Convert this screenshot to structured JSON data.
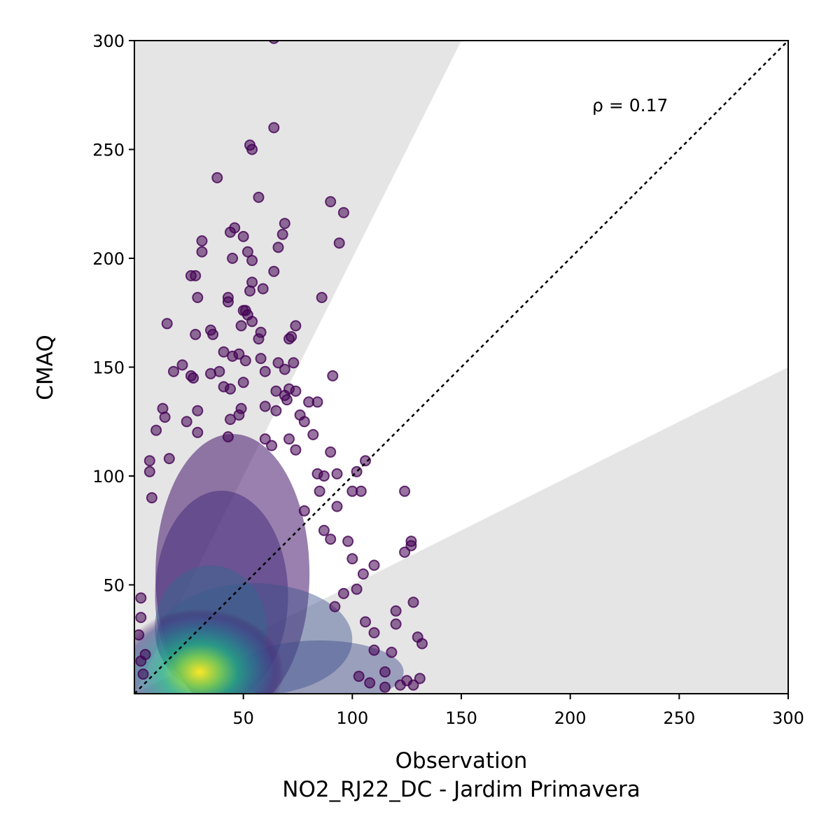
{
  "chart_data": {
    "type": "scatter",
    "title": "",
    "xlabel": "Observation",
    "ylabel": "CMAQ",
    "subtitle": "NO2_RJ22_DC - Jardim Primavera",
    "xlim": [
      0,
      300
    ],
    "ylim": [
      0,
      300
    ],
    "xticks": [
      50,
      100,
      150,
      200,
      250,
      300
    ],
    "yticks": [
      50,
      100,
      150,
      200,
      250,
      300
    ],
    "annotation": "ρ = 0.17",
    "identity_line": {
      "from": [
        0,
        0
      ],
      "to": [
        300,
        300
      ],
      "style": "dotted",
      "color": "#000000"
    },
    "shaded_regions": [
      {
        "name": "",
        "bounds": "y > 2x",
        "color": "#e5e5e5"
      },
      {
        "name": "",
        "bounds": "y < 0.5x",
        "color": "#e5e5e5"
      }
    ],
    "colormap": "viridis",
    "grid": false,
    "legend": "none",
    "dense_core": {
      "x_center": 30,
      "y_center": 10
    },
    "points": [
      [
        64,
        301
      ],
      [
        64,
        260
      ],
      [
        53,
        252
      ],
      [
        54,
        250
      ],
      [
        38,
        237
      ],
      [
        57,
        228
      ],
      [
        90,
        226
      ],
      [
        96,
        221
      ],
      [
        69,
        216
      ],
      [
        68,
        211
      ],
      [
        44,
        212
      ],
      [
        46,
        214
      ],
      [
        50,
        210
      ],
      [
        94,
        207
      ],
      [
        31,
        208
      ],
      [
        66,
        205
      ],
      [
        31,
        203
      ],
      [
        52,
        203
      ],
      [
        45,
        200
      ],
      [
        54,
        199
      ],
      [
        64,
        194
      ],
      [
        26,
        192
      ],
      [
        28,
        192
      ],
      [
        54,
        189
      ],
      [
        53,
        185
      ],
      [
        59,
        186
      ],
      [
        29,
        182
      ],
      [
        43,
        182
      ],
      [
        43,
        180
      ],
      [
        86,
        182
      ],
      [
        50,
        176
      ],
      [
        51,
        176
      ],
      [
        52,
        174
      ],
      [
        54,
        171
      ],
      [
        49,
        169
      ],
      [
        15,
        170
      ],
      [
        58,
        166
      ],
      [
        74,
        169
      ],
      [
        72,
        164
      ],
      [
        71,
        163
      ],
      [
        35,
        167
      ],
      [
        36,
        165
      ],
      [
        28,
        165
      ],
      [
        57,
        163
      ],
      [
        41,
        157
      ],
      [
        45,
        155
      ],
      [
        48,
        156
      ],
      [
        51,
        153
      ],
      [
        58,
        154
      ],
      [
        22,
        151
      ],
      [
        18,
        148
      ],
      [
        39,
        148
      ],
      [
        35,
        147
      ],
      [
        26,
        146
      ],
      [
        27,
        145
      ],
      [
        66,
        152
      ],
      [
        73,
        152
      ],
      [
        69,
        149
      ],
      [
        60,
        148
      ],
      [
        91,
        146
      ],
      [
        50,
        143
      ],
      [
        41,
        141
      ],
      [
        44,
        140
      ],
      [
        65,
        139
      ],
      [
        71,
        140
      ],
      [
        74,
        139
      ],
      [
        69,
        137
      ],
      [
        70,
        135
      ],
      [
        80,
        134
      ],
      [
        84,
        134
      ],
      [
        29,
        130
      ],
      [
        13,
        131
      ],
      [
        14,
        127
      ],
      [
        60,
        132
      ],
      [
        65,
        130
      ],
      [
        49,
        131
      ],
      [
        48,
        128
      ],
      [
        76,
        128
      ],
      [
        78,
        125
      ],
      [
        82,
        119
      ],
      [
        24,
        125
      ],
      [
        29,
        120
      ],
      [
        10,
        121
      ],
      [
        44,
        126
      ],
      [
        43,
        118
      ],
      [
        60,
        117
      ],
      [
        63,
        114
      ],
      [
        71,
        117
      ],
      [
        74,
        112
      ],
      [
        90,
        111
      ],
      [
        16,
        108
      ],
      [
        7,
        107
      ],
      [
        7,
        102
      ],
      [
        106,
        107
      ],
      [
        102,
        102
      ],
      [
        93,
        101
      ],
      [
        87,
        100
      ],
      [
        84,
        101
      ],
      [
        100,
        93
      ],
      [
        124,
        93
      ],
      [
        104,
        93
      ],
      [
        93,
        86
      ],
      [
        8,
        90
      ],
      [
        85,
        93
      ],
      [
        78,
        84
      ],
      [
        87,
        75
      ],
      [
        90,
        71
      ],
      [
        98,
        70
      ],
      [
        110,
        59
      ],
      [
        127,
        70
      ],
      [
        124,
        65
      ],
      [
        127,
        68
      ],
      [
        100,
        62
      ],
      [
        105,
        55
      ],
      [
        102,
        48
      ],
      [
        96,
        46
      ],
      [
        92,
        40
      ],
      [
        120,
        38
      ],
      [
        120,
        32
      ],
      [
        130,
        26
      ],
      [
        128,
        42
      ],
      [
        132,
        23
      ],
      [
        131,
        7
      ],
      [
        125,
        6
      ],
      [
        128,
        4
      ],
      [
        115,
        10
      ],
      [
        110,
        20
      ],
      [
        118,
        19
      ],
      [
        110,
        28
      ],
      [
        106,
        33
      ],
      [
        3,
        44
      ],
      [
        3,
        35
      ],
      [
        2,
        27
      ],
      [
        5,
        18
      ],
      [
        4,
        9
      ],
      [
        3,
        15
      ],
      [
        108,
        5
      ],
      [
        103,
        8
      ],
      [
        115,
        3
      ],
      [
        122,
        4
      ]
    ]
  }
}
